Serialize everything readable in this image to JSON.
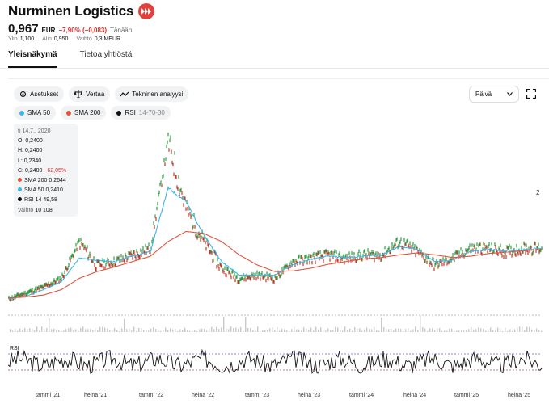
{
  "company": {
    "name": "Nurminen Logistics",
    "icon": "fast-forward-icon",
    "brand_color": "#e0413a"
  },
  "quote": {
    "price": "0,967",
    "currency": "EUR",
    "change": "−7,90% (−0,083)",
    "period": "Tänään",
    "high_label": "Ylin",
    "high": "1,100",
    "low_label": "Alin",
    "low": "0,950",
    "volume_label": "Vaihto",
    "volume": "0,3 MEUR"
  },
  "tabs": [
    {
      "label": "Yleisnäkymä",
      "active": true
    },
    {
      "label": "Tietoa yhtiöstä",
      "active": false
    }
  ],
  "toolbar": {
    "settings": "Asetukset",
    "compare": "Vertaa",
    "technical": "Tekninen analyysi",
    "period": "Päivä"
  },
  "indicators": [
    {
      "label": "SMA 50",
      "param": "",
      "color": "#3fb4e6"
    },
    {
      "label": "SMA 200",
      "param": "",
      "color": "#e0553a"
    },
    {
      "label": "RSI",
      "param": "14-70-30",
      "color": "#111111"
    }
  ],
  "tooltip": {
    "date": "ti 14.7., 2020",
    "open": "O: 0,2400",
    "high": "H: 0,2400",
    "low": "L: 0,2340",
    "close": "C: 0,2400",
    "close_change": "−62,05%",
    "sma200_label": "SMA 200",
    "sma200": "0,2644",
    "sma50_label": "SMA 50",
    "sma50": "0,2410",
    "rsi_label": "RSI 14",
    "rsi": "49,58",
    "volume_label": "Vaihto",
    "volume": "10 108"
  },
  "axis": {
    "right_tick": "2",
    "rsi_label": "RSI"
  },
  "chart_data": {
    "type": "line",
    "x": [
      "2020-07",
      "2020-09",
      "2020-11",
      "2021-01",
      "2021-03",
      "2021-05",
      "2021-07",
      "2021-09",
      "2021-11",
      "2022-01",
      "2022-03",
      "2022-05",
      "2022-07",
      "2022-09",
      "2022-11",
      "2023-01",
      "2023-03",
      "2023-05",
      "2023-07",
      "2023-09",
      "2023-11",
      "2024-01",
      "2024-03",
      "2024-05",
      "2024-07",
      "2024-09",
      "2024-11",
      "2025-01",
      "2025-03",
      "2025-05",
      "2025-07"
    ],
    "series": [
      {
        "name": "Nurminen Logistics",
        "values": [
          0.24,
          0.33,
          0.42,
          0.55,
          1.1,
          0.75,
          0.8,
          0.9,
          1.0,
          2.6,
          1.6,
          1.1,
          0.7,
          0.55,
          0.6,
          0.55,
          0.8,
          0.85,
          0.9,
          0.85,
          0.9,
          0.9,
          1.1,
          0.95,
          0.75,
          0.85,
          1.0,
          1.0,
          0.95,
          1.0,
          1.0
        ]
      },
      {
        "name": "SMA 50",
        "values": [
          0.24,
          0.28,
          0.38,
          0.5,
          0.85,
          0.82,
          0.8,
          0.88,
          0.95,
          1.9,
          1.7,
          1.2,
          0.8,
          0.6,
          0.6,
          0.6,
          0.75,
          0.83,
          0.88,
          0.86,
          0.88,
          0.9,
          1.02,
          0.98,
          0.8,
          0.82,
          0.95,
          0.98,
          0.96,
          0.98,
          1.0
        ]
      },
      {
        "name": "SMA 200",
        "values": [
          0.26,
          0.27,
          0.3,
          0.38,
          0.55,
          0.65,
          0.72,
          0.8,
          0.88,
          1.1,
          1.25,
          1.22,
          1.1,
          0.9,
          0.75,
          0.65,
          0.66,
          0.7,
          0.76,
          0.8,
          0.84,
          0.86,
          0.9,
          0.93,
          0.9,
          0.86,
          0.88,
          0.92,
          0.94,
          0.96,
          0.98
        ]
      }
    ],
    "x_tick_labels": [
      "tammi '21",
      "heinä '21",
      "tammi '22",
      "heinä '22",
      "tammi '23",
      "heinä '23",
      "tammi '24",
      "heinä '24",
      "tammi '25",
      "heinä '25"
    ],
    "rsi_levels": [
      70,
      30
    ],
    "grid": false
  }
}
